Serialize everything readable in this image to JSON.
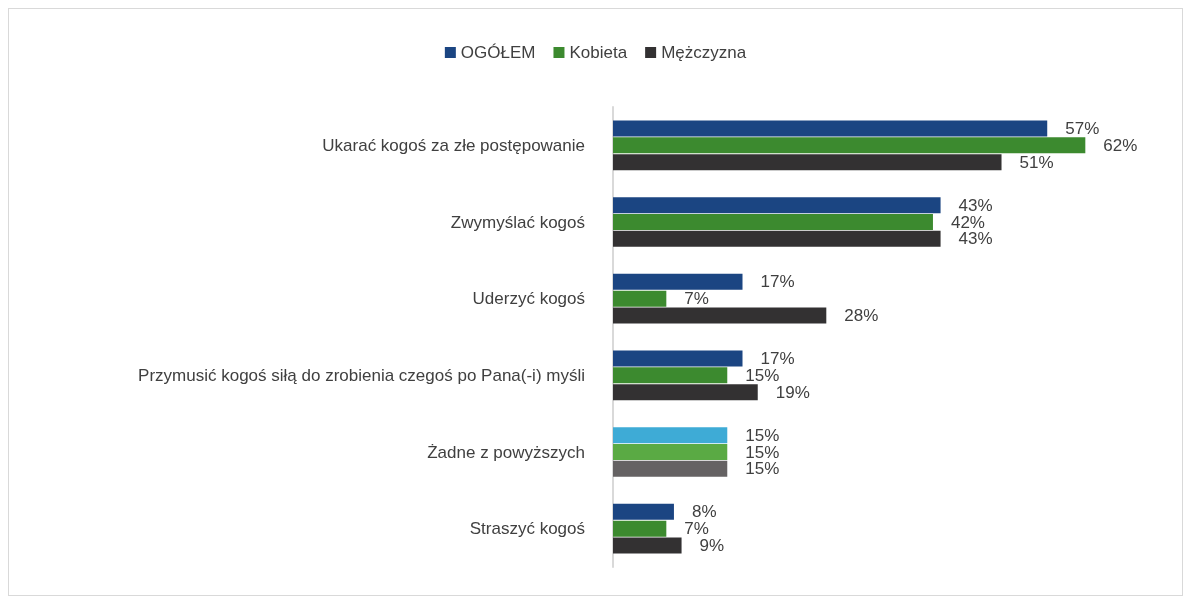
{
  "chart_data": {
    "type": "bar",
    "orientation": "horizontal",
    "legend": "top",
    "categories": [
      "Ukarać kogoś za złe postępowanie",
      "Zwymyślać kogoś",
      "Uderzyć kogoś",
      "Przymusić kogoś siłą do zrobienia czegoś po Pana(-i) myśli",
      "Żadne z powyższych",
      "Straszyć kogoś"
    ],
    "series": [
      {
        "name": "OGÓŁEM",
        "color": "#1b4582",
        "colors": [
          "#1b4582",
          "#1b4582",
          "#1b4582",
          "#1b4582",
          "#3eabd6",
          "#1b4582"
        ],
        "values": [
          57,
          43,
          17,
          17,
          15,
          8
        ],
        "value_labels": [
          "57%",
          "43%",
          "17%",
          "17%",
          "15%",
          "8%"
        ]
      },
      {
        "name": "Kobieta",
        "color": "#3c8a2f",
        "colors": [
          "#3c8a2f",
          "#3c8a2f",
          "#3c8a2f",
          "#3c8a2f",
          "#5aaa44",
          "#3c8a2f"
        ],
        "values": [
          62,
          42,
          7,
          15,
          15,
          7
        ],
        "value_labels": [
          "62%",
          "42%",
          "7%",
          "15%",
          "15%",
          "7%"
        ]
      },
      {
        "name": "Mężczyzna",
        "color": "#333132",
        "colors": [
          "#333132",
          "#333132",
          "#333132",
          "#333132",
          "#656263",
          "#333132"
        ],
        "values": [
          51,
          43,
          28,
          19,
          15,
          9
        ],
        "value_labels": [
          "51%",
          "43%",
          "28%",
          "19%",
          "15%",
          "9%"
        ]
      }
    ]
  }
}
